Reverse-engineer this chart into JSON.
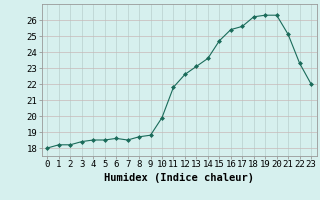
{
  "x": [
    0,
    1,
    2,
    3,
    4,
    5,
    6,
    7,
    8,
    9,
    10,
    11,
    12,
    13,
    14,
    15,
    16,
    17,
    18,
    19,
    20,
    21,
    22,
    23
  ],
  "y": [
    18.0,
    18.2,
    18.2,
    18.4,
    18.5,
    18.5,
    18.6,
    18.5,
    18.7,
    18.8,
    19.9,
    21.8,
    22.6,
    23.1,
    23.6,
    24.7,
    25.4,
    25.6,
    26.2,
    26.3,
    26.3,
    25.1,
    23.3,
    22.0
  ],
  "xlabel": "Humidex (Indice chaleur)",
  "bg_color": "#d6f0ee",
  "grid_color": "#c0dbd8",
  "line_color": "#1a6b5a",
  "marker_color": "#1a6b5a",
  "ylim": [
    17.5,
    27.0
  ],
  "xlim": [
    -0.5,
    23.5
  ],
  "yticks": [
    18,
    19,
    20,
    21,
    22,
    23,
    24,
    25,
    26
  ],
  "xticks": [
    0,
    1,
    2,
    3,
    4,
    5,
    6,
    7,
    8,
    9,
    10,
    11,
    12,
    13,
    14,
    15,
    16,
    17,
    18,
    19,
    20,
    21,
    22,
    23
  ],
  "xlabel_fontsize": 7.5,
  "tick_fontsize": 6.5
}
